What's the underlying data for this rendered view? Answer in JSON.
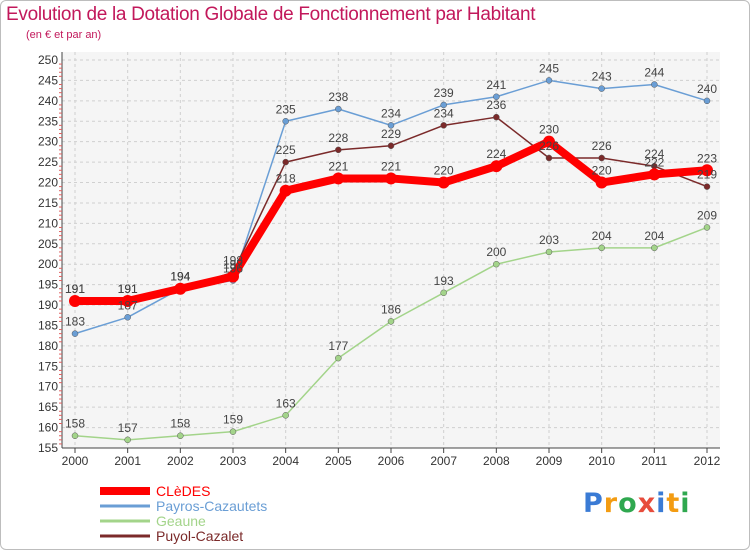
{
  "title": "Evolution de la Dotation Globale de Fonctionnement par Habitant",
  "subtitle": "(en € et par an)",
  "logo_text": "Proxiti",
  "chart_data": {
    "type": "line",
    "title": "Evolution de la Dotation Globale de Fonctionnement par Habitant",
    "subtitle": "(en € et par an)",
    "categories": [
      "2000",
      "2001",
      "2002",
      "2003",
      "2004",
      "2005",
      "2006",
      "2007",
      "2008",
      "2009",
      "2010",
      "2011",
      "2012"
    ],
    "ylim": [
      155,
      250
    ],
    "ytick_step": 5,
    "grid": true,
    "legend_position": "bottom-left",
    "series": [
      {
        "name": "CLèDES",
        "color": "#ff0000",
        "values": [
          191,
          191,
          194,
          197,
          218,
          221,
          221,
          220,
          224,
          230,
          220,
          222,
          223
        ]
      },
      {
        "name": "Payros-Cazautets",
        "color": "#6a9ed5",
        "values": [
          183,
          187,
          194,
          196,
          235,
          238,
          234,
          239,
          241,
          245,
          243,
          244,
          240
        ]
      },
      {
        "name": "Geaune",
        "color": "#a3d48a",
        "values": [
          158,
          157,
          158,
          159,
          163,
          177,
          186,
          193,
          200,
          203,
          204,
          204,
          209
        ]
      },
      {
        "name": "Puyol-Cazalet",
        "color": "#7b2a2a",
        "values": [
          191,
          191,
          194,
          198,
          225,
          228,
          229,
          234,
          236,
          226,
          226,
          224,
          219
        ]
      }
    ]
  }
}
